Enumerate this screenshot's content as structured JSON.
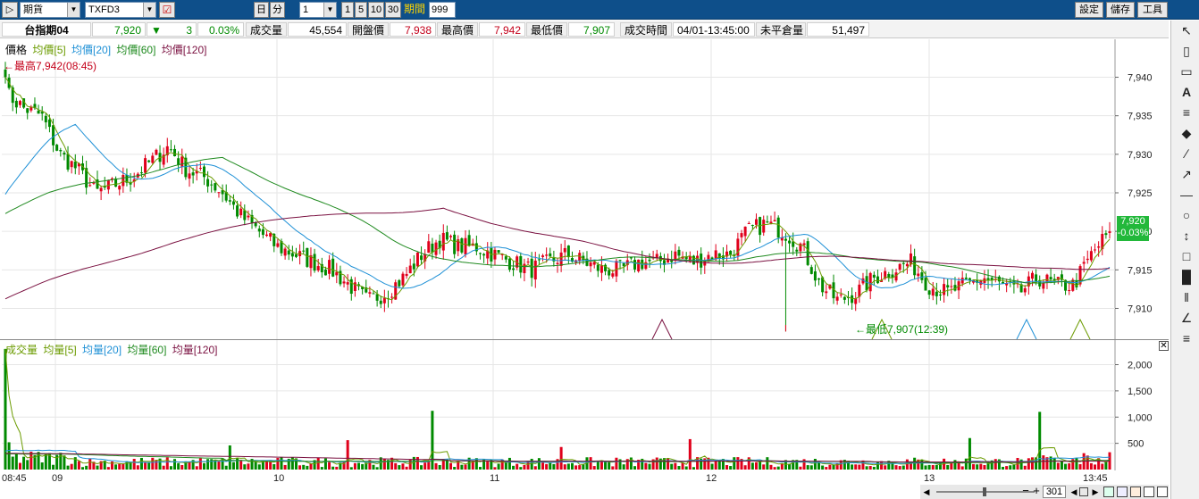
{
  "toolbar": {
    "market": "期貨",
    "symbol": "TXFD3",
    "period_day": "日",
    "period_minute": "分",
    "interval": "1",
    "interval_buttons": [
      "1",
      "5",
      "10",
      "30"
    ],
    "range_label": "期間",
    "range_value": "999",
    "settings_label": "設定",
    "save_label": "儲存",
    "tools_label": "工具"
  },
  "quote": {
    "name": "台指期04",
    "last": "7,920",
    "change_arrow": "▼",
    "change": "3",
    "change_pct": "0.03%",
    "volume_label": "成交量",
    "volume": "45,554",
    "open_label": "開盤價",
    "open": "7,938",
    "high_label": "最高價",
    "high": "7,942",
    "low_label": "最低價",
    "low": "7,907",
    "time_label": "成交時間",
    "time": "04/01-13:45:00",
    "oi_label": "未平倉量",
    "oi": "51,497"
  },
  "price_legend": {
    "price": "價格",
    "ma5": "均價[5]",
    "ma20": "均價[20]",
    "ma60": "均價[60]",
    "ma120": "均價[120]"
  },
  "vol_legend": {
    "vol": "成交量",
    "ma5": "均量[5]",
    "ma20": "均量[20]",
    "ma60": "均量[60]",
    "ma120": "均量[120]"
  },
  "annotations": {
    "high": "最高7,942(08:45)",
    "low": "最低7,907(12:39)"
  },
  "price_tag": {
    "value": "7,920",
    "pct": "-0.03%"
  },
  "scroll": {
    "count": "301"
  },
  "colors": {
    "up": "#e0001b",
    "down": "#008a00",
    "ma5": "#6b9b00",
    "ma20": "#1e90d6",
    "ma60": "#1f8a1f",
    "ma120": "#7a1040",
    "toolbar": "#0e4f8a"
  },
  "chart_data": [
    {
      "type": "candlestick",
      "title": "",
      "x_ticks": [
        "08:45",
        "09",
        "10",
        "11",
        "12",
        "13",
        "13:45"
      ],
      "y_ticks": [
        7910,
        7915,
        7920,
        7925,
        7930,
        7935,
        7940
      ],
      "ylim": [
        7906,
        7944
      ],
      "high": 7942,
      "low": 7907,
      "last": 7920,
      "close_path": [
        7938,
        7936,
        7935,
        7930,
        7928,
        7925,
        7926,
        7927,
        7929,
        7931,
        7928,
        7927,
        7925,
        7922,
        7920,
        7918,
        7917,
        7916,
        7915,
        7913,
        7911,
        7912,
        7914,
        7917,
        7919,
        7918,
        7918,
        7917,
        7916,
        7915,
        7916,
        7917,
        7916,
        7915,
        7915,
        7916,
        7916,
        7917,
        7916,
        7917,
        7917,
        7920,
        7921,
        7920,
        7918,
        7913,
        7911,
        7912,
        7914,
        7915,
        7916,
        7913,
        7912,
        7913,
        7914,
        7913,
        7912,
        7914,
        7913,
        7913,
        7917,
        7920
      ],
      "grid": true
    },
    {
      "type": "bar",
      "title": "",
      "y_ticks": [
        500,
        1000,
        1500,
        2000
      ],
      "ylim": [
        0,
        2400
      ],
      "grid": true
    }
  ]
}
